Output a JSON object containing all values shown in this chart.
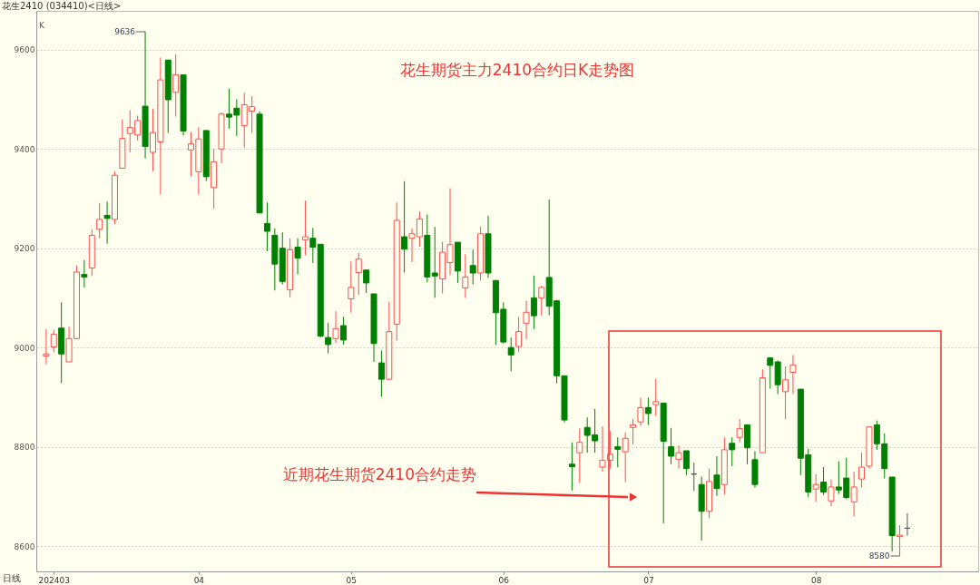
{
  "chart_data": {
    "type": "candlestick",
    "title": "花生期货主力2410合约日K走势图",
    "subtitle": "花生2410 (034410)<日线>",
    "xlabel": "日线",
    "categories": [
      null,
      "202403",
      null,
      null,
      null,
      null,
      null,
      null,
      null,
      null,
      null,
      null,
      null,
      null,
      null,
      null,
      null,
      null,
      null,
      null,
      "04",
      null,
      null,
      null,
      null,
      null,
      null,
      null,
      null,
      null,
      null,
      null,
      null,
      null,
      null,
      null,
      null,
      null,
      null,
      null,
      "05",
      null,
      null,
      null,
      null,
      null,
      null,
      null,
      null,
      null,
      null,
      null,
      null,
      null,
      null,
      null,
      null,
      null,
      null,
      null,
      "06",
      null,
      null,
      null,
      null,
      null,
      null,
      null,
      null,
      null,
      null,
      null,
      null,
      null,
      null,
      null,
      null,
      null,
      null,
      "07",
      null,
      null,
      null,
      null,
      null,
      null,
      null,
      null,
      null,
      null,
      null,
      null,
      null,
      null,
      null,
      null,
      null,
      null,
      null,
      null,
      null,
      "08",
      null,
      null,
      null,
      null,
      null,
      null,
      null,
      null,
      null,
      null,
      null,
      null
    ],
    "ohlc": [
      [
        8983,
        9037,
        8966,
        8987
      ],
      [
        9001,
        9036,
        8990,
        9027
      ],
      [
        9039,
        9091,
        8928,
        8987
      ],
      [
        8971,
        9042,
        8971,
        9018
      ],
      [
        9018,
        9165,
        9018,
        9152
      ],
      [
        9147,
        9176,
        9121,
        9142
      ],
      [
        9160,
        9238,
        9144,
        9226
      ],
      [
        9238,
        9291,
        9220,
        9258
      ],
      [
        9266,
        9294,
        9209,
        9260
      ],
      [
        9258,
        9355,
        9249,
        9347
      ],
      [
        9361,
        9460,
        9361,
        9421
      ],
      [
        9431,
        9478,
        9393,
        9443
      ],
      [
        9428,
        9467,
        9417,
        9457
      ],
      [
        9486,
        9636,
        9381,
        9405
      ],
      [
        9393,
        9481,
        9355,
        9433
      ],
      [
        9414,
        9584,
        9308,
        9539
      ],
      [
        9579,
        9579,
        9432,
        9499
      ],
      [
        9514,
        9591,
        9465,
        9549
      ],
      [
        9549,
        9549,
        9427,
        9436
      ],
      [
        9398,
        9434,
        9345,
        9410
      ],
      [
        9354,
        9443,
        9308,
        9420
      ],
      [
        9437,
        9437,
        9335,
        9344
      ],
      [
        9322,
        9400,
        9280,
        9374
      ],
      [
        9400,
        9473,
        9371,
        9470
      ],
      [
        9470,
        9521,
        9441,
        9464
      ],
      [
        9482,
        9500,
        9426,
        9468
      ],
      [
        9447,
        9513,
        9403,
        9489
      ],
      [
        9476,
        9506,
        9432,
        9485
      ],
      [
        9470,
        9476,
        9271,
        9271
      ],
      [
        9250,
        9292,
        9194,
        9234
      ],
      [
        9226,
        9240,
        9115,
        9168
      ],
      [
        9200,
        9232,
        9127,
        9133
      ],
      [
        9116,
        9220,
        9101,
        9197
      ],
      [
        9202,
        9220,
        9147,
        9180
      ],
      [
        9217,
        9296,
        9186,
        9223
      ],
      [
        9220,
        9241,
        9170,
        9202
      ],
      [
        9208,
        9208,
        9020,
        9023
      ],
      [
        9020,
        9050,
        8988,
        9006
      ],
      [
        9018,
        9073,
        9009,
        9038
      ],
      [
        9044,
        9062,
        9006,
        9015
      ],
      [
        9098,
        9173,
        9070,
        9121
      ],
      [
        9151,
        9191,
        9106,
        9178
      ],
      [
        9156,
        9156,
        9110,
        9130
      ],
      [
        9108,
        9108,
        8971,
        9008
      ],
      [
        8969,
        8994,
        8901,
        8936
      ],
      [
        8936,
        9092,
        8936,
        9032
      ],
      [
        9047,
        9292,
        9014,
        9256
      ],
      [
        9223,
        9335,
        9151,
        9198
      ],
      [
        9220,
        9240,
        9172,
        9229
      ],
      [
        9223,
        9274,
        9203,
        9259
      ],
      [
        9226,
        9268,
        9131,
        9142
      ],
      [
        9150,
        9243,
        9100,
        9144
      ],
      [
        9138,
        9213,
        9109,
        9192
      ],
      [
        9171,
        9321,
        9146,
        9207
      ],
      [
        9212,
        9212,
        9130,
        9154
      ],
      [
        9120,
        9188,
        9100,
        9142
      ],
      [
        9165,
        9197,
        9127,
        9150
      ],
      [
        9150,
        9243,
        9135,
        9229
      ],
      [
        9229,
        9265,
        9140,
        9150
      ],
      [
        9135,
        9135,
        9005,
        9070
      ],
      [
        9077,
        9091,
        9008,
        9011
      ],
      [
        9000,
        9020,
        8952,
        8985
      ],
      [
        9002,
        9062,
        8991,
        9032
      ],
      [
        9049,
        9094,
        9017,
        9071
      ],
      [
        9100,
        9145,
        9037,
        9064
      ],
      [
        9100,
        9124,
        9064,
        9121
      ],
      [
        9141,
        9298,
        9065,
        9083
      ],
      [
        9094,
        9096,
        8928,
        8943
      ],
      [
        8943,
        8943,
        8849,
        8854
      ],
      [
        8765,
        8809,
        8712,
        8760
      ],
      [
        8788,
        8837,
        8727,
        8809
      ],
      [
        8839,
        8859,
        8788,
        8823
      ],
      [
        8824,
        8876,
        8788,
        8812
      ],
      [
        8759,
        8841,
        8750,
        8773
      ],
      [
        8773,
        8832,
        8756,
        8785
      ],
      [
        8800,
        8819,
        8759,
        8795
      ],
      [
        8790,
        8829,
        8729,
        8817
      ],
      [
        8839,
        8856,
        8805,
        8844
      ],
      [
        8850,
        8899,
        8842,
        8879
      ],
      [
        8879,
        8899,
        8844,
        8867
      ],
      [
        8885,
        8937,
        8862,
        8891
      ],
      [
        8888,
        8888,
        8646,
        8811
      ],
      [
        8800,
        8838,
        8765,
        8781
      ],
      [
        8775,
        8803,
        8756,
        8788
      ],
      [
        8792,
        8792,
        8743,
        8756
      ],
      [
        8745,
        8768,
        8711,
        8745
      ],
      [
        8724,
        8740,
        8611,
        8670
      ],
      [
        8670,
        8756,
        8656,
        8730
      ],
      [
        8743,
        8781,
        8701,
        8716
      ],
      [
        8724,
        8819,
        8704,
        8794
      ],
      [
        8807,
        8819,
        8761,
        8794
      ],
      [
        8819,
        8856,
        8809,
        8837
      ],
      [
        8844,
        8844,
        8765,
        8798
      ],
      [
        8774,
        8791,
        8718,
        8724
      ],
      [
        8788,
        8956,
        8788,
        8939
      ],
      [
        8979,
        8979,
        8917,
        8964
      ],
      [
        8971,
        8974,
        8906,
        8925
      ],
      [
        8911,
        8962,
        8856,
        8935
      ],
      [
        8950,
        8985,
        8906,
        8965
      ],
      [
        8916,
        8916,
        8743,
        8777
      ],
      [
        8784,
        8796,
        8698,
        8709
      ],
      [
        8715,
        8745,
        8689,
        8724
      ],
      [
        8729,
        8759,
        8703,
        8709
      ],
      [
        8691,
        8734,
        8680,
        8719
      ],
      [
        8719,
        8771,
        8705,
        8713
      ],
      [
        8737,
        8778,
        8695,
        8698
      ],
      [
        8689,
        8750,
        8660,
        8719
      ],
      [
        8735,
        8788,
        8718,
        8759
      ],
      [
        8761,
        8840,
        8756,
        8840
      ],
      [
        8844,
        8853,
        8794,
        8806
      ],
      [
        8806,
        8827,
        8736,
        8756
      ],
      [
        8739,
        8739,
        8589,
        8621
      ],
      [
        8619,
        8642,
        8580,
        8622
      ],
      [
        8636,
        8666,
        8621,
        8636
      ]
    ],
    "colors": [
      "#ff4d4d",
      "#ff4d4d",
      "#008000",
      "#ff4d4d",
      "#ff4d4d",
      "#008000",
      "#ff4d4d",
      "#ff4d4d",
      "#008000",
      "#ff4d4d",
      "#ff4d4d",
      "#ff4d4d",
      "#ff4d4d",
      "#008000",
      "#ff4d4d",
      "#ff4d4d",
      "#008000",
      "#ff4d4d",
      "#008000",
      "#ff4d4d",
      "#ff4d4d",
      "#008000",
      "#ff4d4d",
      "#ff4d4d",
      "#008000",
      "#008000",
      "#ff4d4d",
      "#ff4d4d",
      "#008000",
      "#008000",
      "#008000",
      "#008000",
      "#ff4d4d",
      "#008000",
      "#ff4d4d",
      "#008000",
      "#008000",
      "#008000",
      "#ff4d4d",
      "#008000",
      "#ff4d4d",
      "#ff4d4d",
      "#008000",
      "#008000",
      "#008000",
      "#ff4d4d",
      "#ff4d4d",
      "#008000",
      "#ff4d4d",
      "#ff4d4d",
      "#008000",
      "#008000",
      "#ff4d4d",
      "#ff4d4d",
      "#008000",
      "#ff4d4d",
      "#008000",
      "#ff4d4d",
      "#008000",
      "#008000",
      "#008000",
      "#008000",
      "#ff4d4d",
      "#ff4d4d",
      "#008000",
      "#ff4d4d",
      "#008000",
      "#008000",
      "#008000",
      "#008000",
      "#ff4d4d",
      "#008000",
      "#008000",
      "#ff4d4d",
      "#ff4d4d",
      "#008000",
      "#ff4d4d",
      "#ff4d4d",
      "#ff4d4d",
      "#008000",
      "#ff4d4d",
      "#008000",
      "#008000",
      "#ff4d4d",
      "#008000",
      "#555555",
      "#008000",
      "#ff4d4d",
      "#008000",
      "#ff4d4d",
      "#008000",
      "#ff4d4d",
      "#008000",
      "#008000",
      "#ff4d4d",
      "#008000",
      "#008000",
      "#ff4d4d",
      "#ff4d4d",
      "#008000",
      "#008000",
      "#ff4d4d",
      "#008000",
      "#ff4d4d",
      "#008000",
      "#008000",
      "#ff4d4d",
      "#ff4d4d",
      "#ff4d4d",
      "#008000",
      "#008000",
      "#008000",
      "#ff4d4d",
      "#555555"
    ],
    "ylim": [
      8549,
      9678
    ],
    "yticks": [
      8600,
      8800,
      9000,
      9200,
      9400,
      9600
    ],
    "grid": "y",
    "annotations": [
      "9636",
      "8580",
      "近期花生期货2410合约走势",
      "K"
    ]
  }
}
